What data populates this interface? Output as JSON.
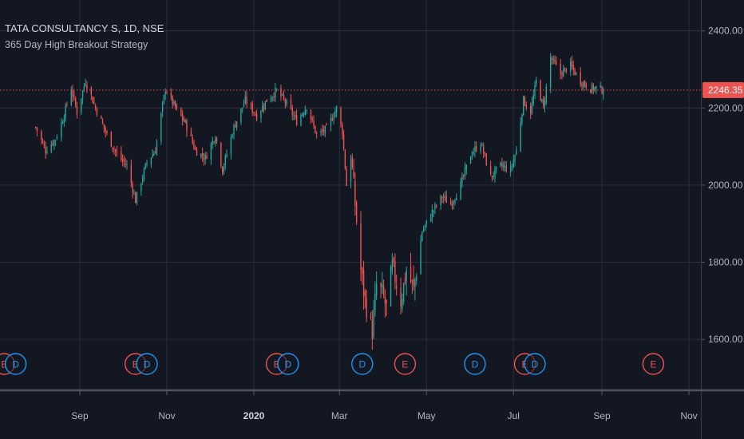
{
  "chart_data": {
    "type": "candlestick",
    "title": "TATA CONSULTANCY S, 1D, NSE",
    "indicator": "365 Day High Breakout Strategy",
    "last_price": "2246.35",
    "y_ticks": [
      "2400.00",
      "2200.00",
      "2000.00",
      "1800.00",
      "1600.00"
    ],
    "ylim": [
      1470,
      2480
    ],
    "x_ticks": [
      "Sep",
      "Nov",
      "2020",
      "Mar",
      "May",
      "Jul",
      "Sep",
      "Nov"
    ],
    "grid": true,
    "colors": {
      "background": "#131722",
      "up": "#26a69a",
      "down": "#ef5350",
      "grid": "#2a2e39",
      "text": "#b2b5be",
      "price_line": "#ef5350",
      "price_label_bg": "#ef5350",
      "earnings": "#ef5350",
      "dividend": "#2196f3"
    },
    "anchors": [
      [
        "2019-08-01",
        2150
      ],
      [
        "2019-08-08",
        2090
      ],
      [
        "2019-08-15",
        2120
      ],
      [
        "2019-08-20",
        2170
      ],
      [
        "2019-08-26",
        2250
      ],
      [
        "2019-08-30",
        2190
      ],
      [
        "2019-09-05",
        2270
      ],
      [
        "2019-09-12",
        2200
      ],
      [
        "2019-09-20",
        2130
      ],
      [
        "2019-09-27",
        2080
      ],
      [
        "2019-10-04",
        2050
      ],
      [
        "2019-10-10",
        1960
      ],
      [
        "2019-10-18",
        2060
      ],
      [
        "2019-10-24",
        2090
      ],
      [
        "2019-10-31",
        2250
      ],
      [
        "2019-11-07",
        2200
      ],
      [
        "2019-11-14",
        2160
      ],
      [
        "2019-11-21",
        2090
      ],
      [
        "2019-11-28",
        2070
      ],
      [
        "2019-12-05",
        2130
      ],
      [
        "2019-12-10",
        2040
      ],
      [
        "2019-12-18",
        2150
      ],
      [
        "2019-12-26",
        2220
      ],
      [
        "2020-01-03",
        2180
      ],
      [
        "2020-01-10",
        2220
      ],
      [
        "2020-01-17",
        2245
      ],
      [
        "2020-01-24",
        2210
      ],
      [
        "2020-01-31",
        2165
      ],
      [
        "2020-02-07",
        2205
      ],
      [
        "2020-02-14",
        2130
      ],
      [
        "2020-02-21",
        2145
      ],
      [
        "2020-02-28",
        2200
      ],
      [
        "2020-03-03",
        2140
      ],
      [
        "2020-03-06",
        2000
      ],
      [
        "2020-03-09",
        2080
      ],
      [
        "2020-03-12",
        1950
      ],
      [
        "2020-03-16",
        1780
      ],
      [
        "2020-03-19",
        1700
      ],
      [
        "2020-03-24",
        1620
      ],
      [
        "2020-03-27",
        1740
      ],
      [
        "2020-03-31",
        1720
      ],
      [
        "2020-04-03",
        1680
      ],
      [
        "2020-04-07",
        1790
      ],
      [
        "2020-04-13",
        1700
      ],
      [
        "2020-04-17",
        1780
      ],
      [
        "2020-04-22",
        1730
      ],
      [
        "2020-04-28",
        1880
      ],
      [
        "2020-05-05",
        1930
      ],
      [
        "2020-05-12",
        1970
      ],
      [
        "2020-05-18",
        1950
      ],
      [
        "2020-05-25",
        2000
      ],
      [
        "2020-06-01",
        2080
      ],
      [
        "2020-06-08",
        2110
      ],
      [
        "2020-06-15",
        2020
      ],
      [
        "2020-06-22",
        2050
      ],
      [
        "2020-06-29",
        2040
      ],
      [
        "2020-07-03",
        2090
      ],
      [
        "2020-07-08",
        2220
      ],
      [
        "2020-07-13",
        2190
      ],
      [
        "2020-07-17",
        2270
      ],
      [
        "2020-07-22",
        2200
      ],
      [
        "2020-07-27",
        2330
      ],
      [
        "2020-08-03",
        2290
      ],
      [
        "2020-08-10",
        2310
      ],
      [
        "2020-08-17",
        2270
      ],
      [
        "2020-08-24",
        2250
      ],
      [
        "2020-08-28",
        2252
      ],
      [
        "2020-09-02",
        2246.35
      ]
    ],
    "markers": [
      {
        "label": "E",
        "type": "earnings",
        "date": "2019-07-10"
      },
      {
        "label": "D",
        "type": "dividend",
        "date": "2019-07-18"
      },
      {
        "label": "E",
        "type": "earnings",
        "date": "2019-10-10"
      },
      {
        "label": "D",
        "type": "dividend",
        "date": "2019-10-18"
      },
      {
        "label": "E",
        "type": "earnings",
        "date": "2020-01-17"
      },
      {
        "label": "D",
        "type": "dividend",
        "date": "2020-01-25"
      },
      {
        "label": "D",
        "type": "dividend",
        "date": "2020-03-17"
      },
      {
        "label": "E",
        "type": "earnings",
        "date": "2020-04-16"
      },
      {
        "label": "D",
        "type": "dividend",
        "date": "2020-06-04"
      },
      {
        "label": "E",
        "type": "earnings",
        "date": "2020-07-09"
      },
      {
        "label": "D",
        "type": "dividend",
        "date": "2020-07-16"
      },
      {
        "label": "E",
        "type": "earnings",
        "date": "2020-10-07"
      }
    ]
  }
}
